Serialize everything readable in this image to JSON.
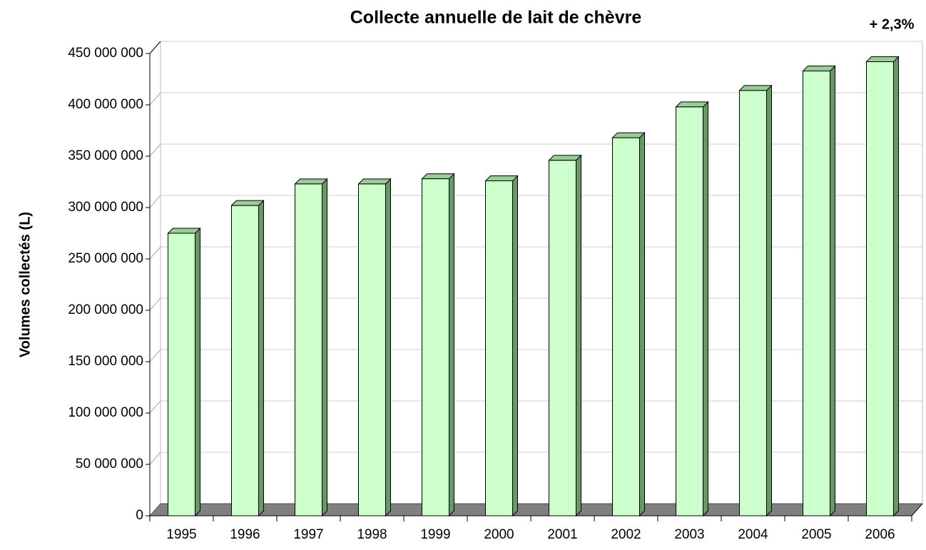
{
  "chart_data": {
    "type": "bar3d",
    "title": "Collecte annuelle de lait de chèvre",
    "annotation": "+ 2,3%",
    "y_label": "Volumes collectés (L)",
    "categories": [
      "1995",
      "1996",
      "1997",
      "1998",
      "1999",
      "2000",
      "2001",
      "2002",
      "2003",
      "2004",
      "2005",
      "2006"
    ],
    "values": [
      275000000,
      302000000,
      323000000,
      323000000,
      328000000,
      326000000,
      346000000,
      368000000,
      398000000,
      414000000,
      433000000,
      442000000
    ],
    "color": "#ccffcc",
    "ylim": [
      0,
      450000000
    ],
    "yticks": [
      {
        "value": 0,
        "label": "0"
      },
      {
        "value": 50000000,
        "label": "50 000 000"
      },
      {
        "value": 100000000,
        "label": "100 000 000"
      },
      {
        "value": 150000000,
        "label": "150 000 000"
      },
      {
        "value": 200000000,
        "label": "200 000 000"
      },
      {
        "value": 250000000,
        "label": "250 000 000"
      },
      {
        "value": 300000000,
        "label": "300 000 000"
      },
      {
        "value": 350000000,
        "label": "350 000 000"
      },
      {
        "value": 400000000,
        "label": "400 000 000"
      },
      {
        "value": 450000000,
        "label": "450 000 000"
      }
    ],
    "grid": true
  }
}
